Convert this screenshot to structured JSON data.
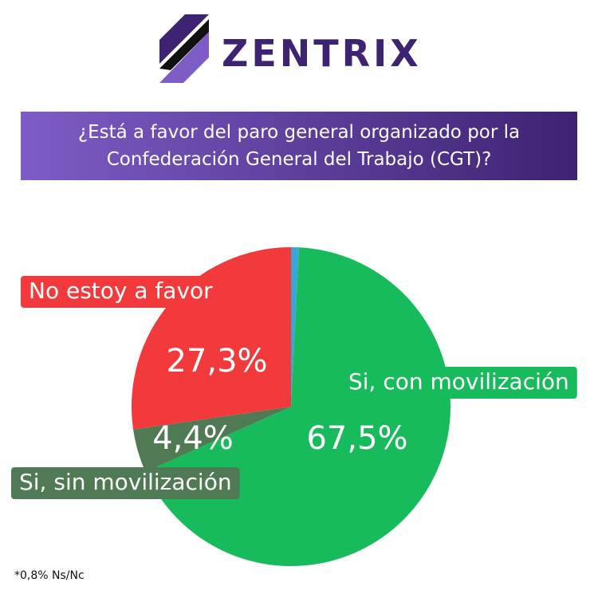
{
  "brand": "ZENTRIX",
  "chart_data": {
    "type": "pie",
    "title": "¿Está a favor del paro general organizado por la Confederación General del Trabajo (CGT)?",
    "categories": [
      null,
      "Si, con movilización",
      "Si, sin movilización",
      "No estoy a favor"
    ],
    "values": [
      0.8,
      67.5,
      4.4,
      27.3
    ],
    "value_labels": [
      null,
      "67,5%",
      "4,4%",
      "27,3%"
    ],
    "colors": [
      "#3aa6d8",
      "#17bb5b",
      "#4f7a54",
      "#f23a3c"
    ],
    "footnote": "*0,8% Ns/Nc"
  }
}
